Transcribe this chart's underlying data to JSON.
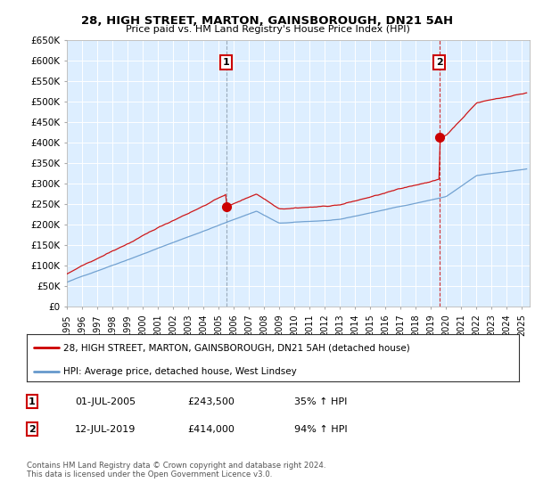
{
  "title": "28, HIGH STREET, MARTON, GAINSBOROUGH, DN21 5AH",
  "subtitle": "Price paid vs. HM Land Registry's House Price Index (HPI)",
  "legend_line1": "28, HIGH STREET, MARTON, GAINSBOROUGH, DN21 5AH (detached house)",
  "legend_line2": "HPI: Average price, detached house, West Lindsey",
  "footer": "Contains HM Land Registry data © Crown copyright and database right 2024.\nThis data is licensed under the Open Government Licence v3.0.",
  "table_rows": [
    {
      "num": "1",
      "date": "01-JUL-2005",
      "price": "£243,500",
      "hpi": "35% ↑ HPI"
    },
    {
      "num": "2",
      "date": "12-JUL-2019",
      "price": "£414,000",
      "hpi": "94% ↑ HPI"
    }
  ],
  "sale1_year": 2005.5,
  "sale1_price": 243500,
  "sale2_year": 2019.54,
  "sale2_price": 414000,
  "red_color": "#cc0000",
  "blue_color": "#6699cc",
  "chart_bg": "#ddeeff",
  "background": "#ffffff",
  "grid_color": "#ffffff",
  "ylim": [
    0,
    650000
  ],
  "yticks": [
    0,
    50000,
    100000,
    150000,
    200000,
    250000,
    300000,
    350000,
    400000,
    450000,
    500000,
    550000,
    600000,
    650000
  ],
  "xmin": 1995,
  "xmax": 2025.5
}
